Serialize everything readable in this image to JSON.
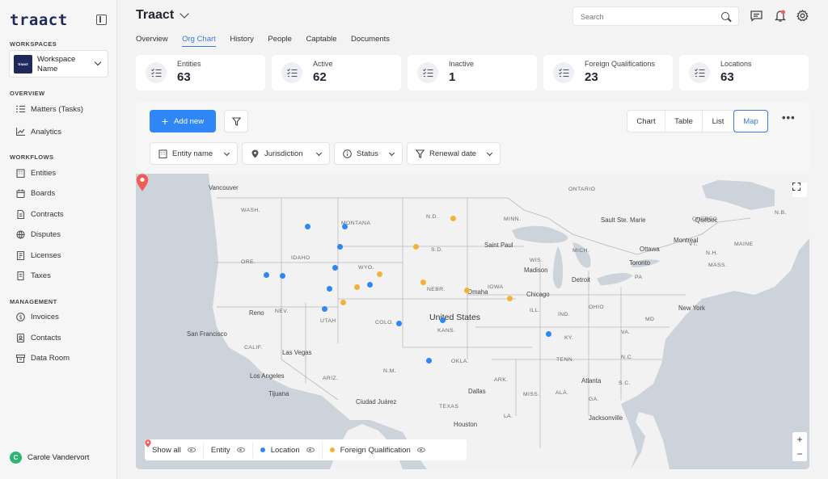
{
  "app": {
    "logo_text": "traact"
  },
  "sidebar": {
    "workspace_label": "WORKSPACES",
    "workspace_logo_text": "traact",
    "workspace_name": "Workspace Name",
    "overview_label": "OVERVIEW",
    "overview_items": [
      {
        "label": "Matters (Tasks)",
        "icon": "list-icon"
      },
      {
        "label": "Analytics",
        "icon": "chart-icon"
      }
    ],
    "workflows_label": "WORKFLOWS",
    "workflow_items": [
      {
        "label": "Entities",
        "icon": "building-icon"
      },
      {
        "label": "Boards",
        "icon": "calendar-icon"
      },
      {
        "label": "Contracts",
        "icon": "document-icon"
      },
      {
        "label": "Disputes",
        "icon": "gavel-icon"
      },
      {
        "label": "Licenses",
        "icon": "certificate-icon"
      },
      {
        "label": "Taxes",
        "icon": "receipt-icon"
      }
    ],
    "management_label": "MANAGEMENT",
    "management_items": [
      {
        "label": "Invoices",
        "icon": "dollar-icon"
      },
      {
        "label": "Contacts",
        "icon": "contacts-icon"
      },
      {
        "label": "Data Room",
        "icon": "archive-icon"
      }
    ],
    "user": {
      "initial": "C",
      "name": "Carole Vandervort"
    }
  },
  "header": {
    "title": "Traact",
    "search_placeholder": "Search"
  },
  "tabs": [
    "Overview",
    "Org Chart",
    "History",
    "People",
    "Captable",
    "Documents"
  ],
  "active_tab": "Org Chart",
  "stats": [
    {
      "label": "Entities",
      "value": "63"
    },
    {
      "label": "Active",
      "value": "62"
    },
    {
      "label": "Inactive",
      "value": "1"
    },
    {
      "label": "Foreign Qualifications",
      "value": "23"
    },
    {
      "label": "Locations",
      "value": "63"
    }
  ],
  "toolbar": {
    "add_label": "Add new",
    "views": [
      "Chart",
      "Table",
      "List",
      "Map"
    ],
    "active_view": "Map",
    "filters": [
      "Entity name",
      "Jurisdiction",
      "Status",
      "Renewal date"
    ]
  },
  "map": {
    "country_label": "United States",
    "state_labels": [
      "WASH.",
      "MONTANA",
      "N.D.",
      "ONTARIO",
      "QUEBEC",
      "ORE.",
      "IDAHO",
      "WYO.",
      "S.D.",
      "MINN.",
      "MICH.",
      "NEBR.",
      "IOWA",
      "WIS.",
      "PA",
      "NEV.",
      "UTAH",
      "COLO.",
      "KANS.",
      "ILL.",
      "IND.",
      "OHIO",
      "MD",
      "CALIF.",
      "ARIZ.",
      "OKLA.",
      "TENN.",
      "N.C.",
      "S.C.",
      "N.M.",
      "ARK.",
      "MISS.",
      "ALA.",
      "GA.",
      "LA.",
      "TEXAS",
      "N.B.",
      "MAINE",
      "N.H.",
      "VT.",
      "MASS.",
      "VA.",
      "KY."
    ],
    "city_labels": [
      "Vancouver",
      "Sault Ste. Marie",
      "Saint Paul",
      "Ottawa",
      "Montreal",
      "Toronto",
      "Madison",
      "Detroit",
      "Chicago",
      "Omaha",
      "New York",
      "Reno",
      "San Francisco",
      "Las Vegas",
      "Los Angeles",
      "Tijuana",
      "Ciudad Juárez",
      "Dallas",
      "Atlanta",
      "Houston",
      "Jacksonville",
      "Québec"
    ],
    "legend": [
      {
        "label": "Show all"
      },
      {
        "label": "Entity",
        "color": "#f25c54"
      },
      {
        "label": "Location",
        "color": "#2f86f6"
      },
      {
        "label": "Foreign Qualification",
        "color": "#f0b43a"
      }
    ],
    "colors": {
      "location": "#2f86f6",
      "foreign_qualification": "#f0b43a",
      "entity_pin": "#f25c54",
      "accent": "#3a7be0"
    }
  }
}
